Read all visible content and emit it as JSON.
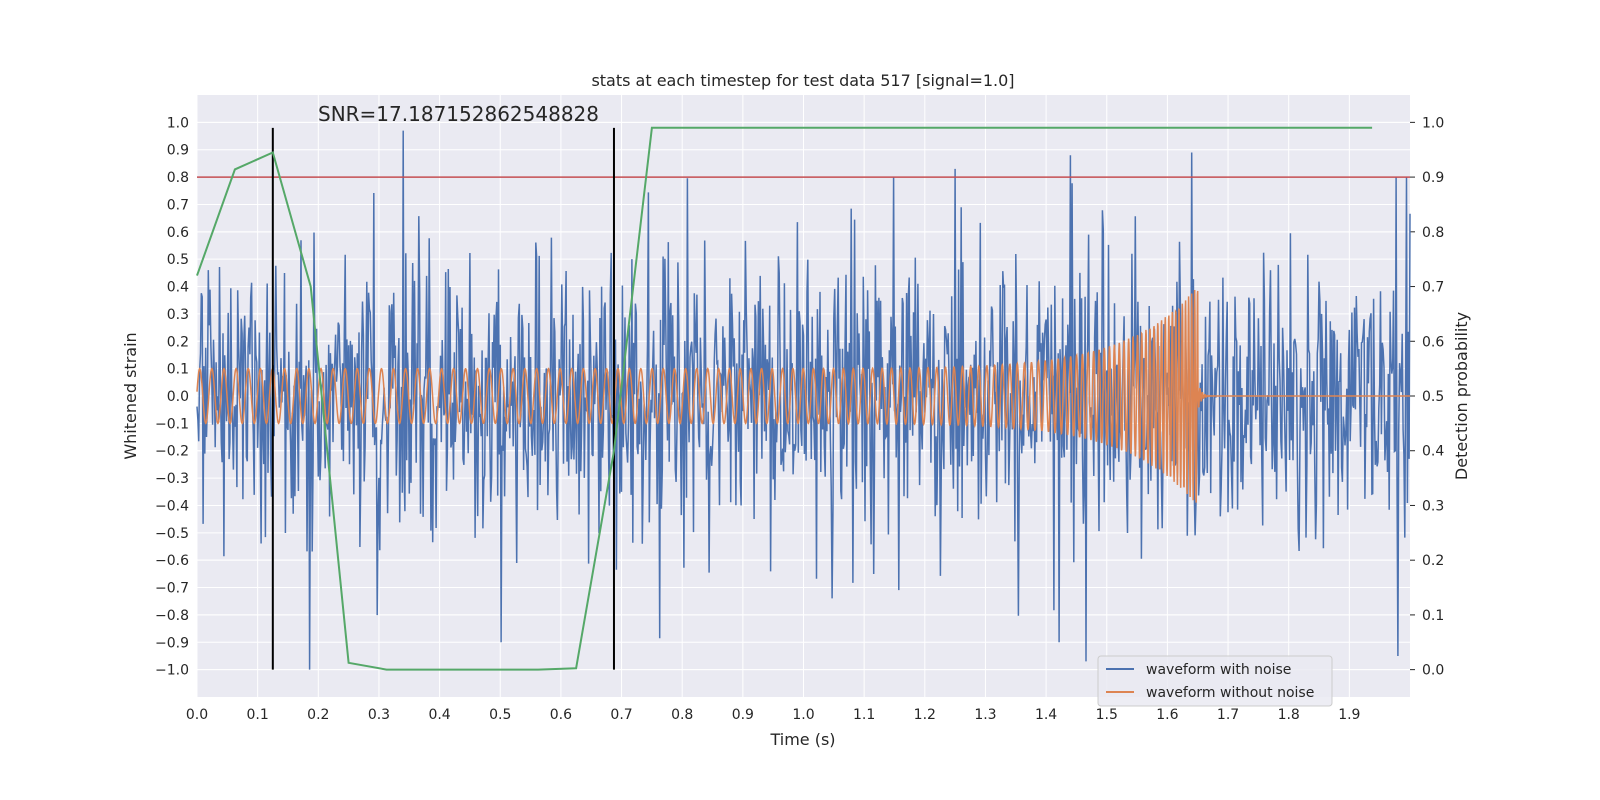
{
  "chart_data": {
    "type": "line",
    "title": "stats at each timestep for test data 517 [signal=1.0]",
    "annotation": "SNR=17.187152862548828",
    "xlabel": "Time (s)",
    "ylabel": "Whitened strain",
    "y2label": "Detection probability",
    "xlim": [
      0.0,
      2.0
    ],
    "ylim": [
      -1.1,
      1.1
    ],
    "y2lim": [
      -0.05,
      1.05
    ],
    "xticks": [
      "0.0",
      "0.1",
      "0.2",
      "0.3",
      "0.4",
      "0.5",
      "0.6",
      "0.7",
      "0.8",
      "0.9",
      "1.0",
      "1.1",
      "1.2",
      "1.3",
      "1.4",
      "1.5",
      "1.6",
      "1.7",
      "1.8",
      "1.9"
    ],
    "yticks": [
      "1.0",
      "0.9",
      "0.8",
      "0.7",
      "0.6",
      "0.5",
      "0.4",
      "0.3",
      "0.2",
      "0.1",
      "0.0",
      "-0.1",
      "-0.2",
      "-0.3",
      "-0.4",
      "-0.5",
      "-0.6",
      "-0.7",
      "-0.8",
      "-0.9",
      "-1.0"
    ],
    "y2ticks": [
      "1.0",
      "0.9",
      "0.8",
      "0.7",
      "0.6",
      "0.5",
      "0.4",
      "0.3",
      "0.2",
      "0.1",
      "0.0"
    ],
    "grid": true,
    "legend_position": "lower-right",
    "series": [
      {
        "name": "waveform with noise",
        "color": "#4c72b0",
        "style": "noisy",
        "amplitude": 0.25,
        "peaks": [
          [
            0.34,
            0.97
          ],
          [
            0.185,
            -1.0
          ],
          [
            1.465,
            -0.97
          ],
          [
            1.25,
            0.83
          ],
          [
            1.44,
            0.88
          ],
          [
            1.64,
            0.89
          ],
          [
            1.98,
            -0.95
          ]
        ]
      },
      {
        "name": "waveform without noise",
        "color": "#dd8452",
        "style": "chirp",
        "t_start": 0.0,
        "t_merger": 1.65,
        "t_end": 2.0,
        "amp_initial": 0.1,
        "amp_max": 0.4
      }
    ],
    "probability": {
      "color": "#55a868",
      "x": [
        0.0,
        0.0625,
        0.125,
        0.1875,
        0.25,
        0.3125,
        0.5625,
        0.625,
        0.6875,
        0.75,
        1.9375
      ],
      "y": [
        0.72,
        0.914,
        0.945,
        0.7,
        0.0125,
        0.0,
        0.0,
        0.0025,
        0.4,
        0.99,
        0.99
      ]
    },
    "threshold": {
      "value": 0.9,
      "color": "#c44e52"
    },
    "vlines": {
      "x": [
        0.125,
        0.6875
      ],
      "color": "#000000"
    }
  }
}
